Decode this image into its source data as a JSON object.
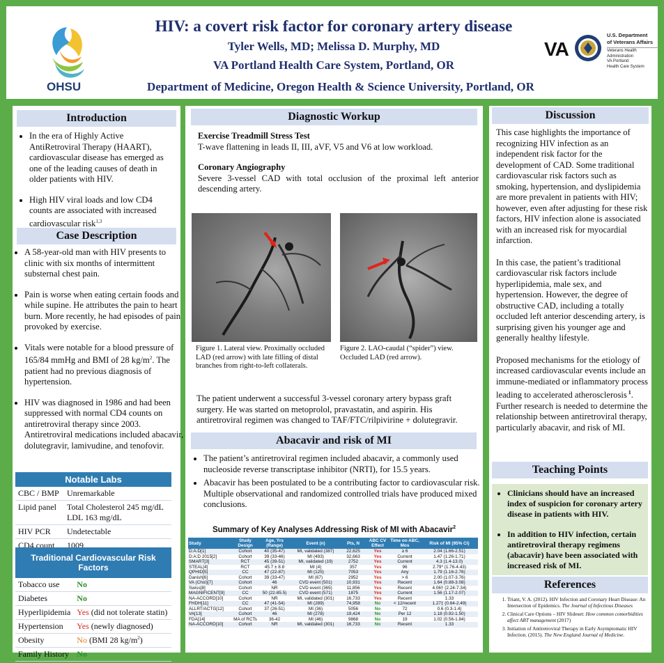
{
  "header": {
    "title": "HIV: a covert risk factor for coronary artery disease",
    "authors": "Tyler Wells, MD;  Melissa D. Murphy, MD",
    "affiliation": "VA Portland Health Care System, Portland, OR",
    "department": "Department of Medicine, Oregon Health & Science University, Portland, OR",
    "ohsu_logo": "OHSU",
    "va_logo": "VA",
    "va_dept_line1": "U.S. Department",
    "va_dept_line2": "of Veterans Affairs",
    "va_admin_line1": "Veterans Health",
    "va_admin_line2": "Administration",
    "va_admin_line3": "VA Portland",
    "va_admin_line4": "Health Care System",
    "colors": {
      "background": "#5cad4a",
      "title": "#1f2f6e",
      "section_head": "#d4deef",
      "table_head": "#2f7cb2"
    }
  },
  "introduction": {
    "heading": "Introduction",
    "bullets": [
      "In the era of Highly Active AntiRetroviral Therapy (HAART), cardiovascular disease has emerged as one of the leading causes of death in older patients with HIV.",
      "High HIV viral loads and low CD4 counts are associated with increased cardiovascular risk"
    ],
    "bullet2_sup": "1,3"
  },
  "case": {
    "heading": "Case Description",
    "bullet1": "A 58-year-old man with HIV presents to clinic with six months of intermittent substernal chest pain.",
    "bullet2": "Pain is worse when eating certain foods and while supine. He attributes the pain to heart burn. More recently, he had episodes of pain provoked by exercise.",
    "bullet3_a": "Vitals were notable for a blood pressure of 165/84 mmHg and BMI of 28 kg/m",
    "bullet3_sup": "2",
    "bullet3_b": ". The patient had no previous diagnosis of hypertension.",
    "bullet4": "HIV was diagnosed in 1986 and had been suppressed with normal CD4 counts on antiretroviral therapy since 2003. Antiretroviral medications included abacavir, dolutegravir, lamivudine, and tenofovir."
  },
  "labs": {
    "heading": "Notable Labs",
    "rows": [
      {
        "name": "CBC / BMP",
        "value": "Unremarkable"
      },
      {
        "name": "Lipid panel",
        "value": "Total Cholesterol 245 mg/dL",
        "value2": "LDL 163 mg/dL"
      },
      {
        "name": "HIV PCR",
        "value": "Undetectable"
      },
      {
        "name": "CD4 count",
        "value": "1009"
      }
    ]
  },
  "risk": {
    "heading": "Traditional Cardiovascular Risk Factors",
    "rows": [
      {
        "name": "Tobacco use",
        "flag": "No",
        "note": ""
      },
      {
        "name": "Diabetes",
        "flag": "No",
        "note": ""
      },
      {
        "name": "Hyperlipidemia",
        "flag": "Yes",
        "note": " (did not tolerate statin)"
      },
      {
        "name": "Hypertension",
        "flag": "Yes",
        "note": " (newly diagnosed)"
      },
      {
        "name": "Obesity",
        "flag": "No",
        "note": " (BMI 28 kg/m",
        "note_sup": "2",
        "note_end": ")"
      },
      {
        "name": "Family History",
        "flag": "No",
        "note": ""
      }
    ]
  },
  "workup": {
    "heading": "Diagnostic Workup",
    "ett_title": "Exercise Treadmill Stress Test",
    "ett_text": "T-wave flattening in leads II, III, aVF, V5 and V6 at low workload.",
    "angio_title": "Coronary Angiography",
    "angio_text": "Severe 3-vessel CAD with total occlusion of the proximal left anterior descending artery.",
    "fig1_caption": "Figure 1. Lateral view. Proximally occluded LAD (red arrow) with late filling of distal branches from right-to-left collaterals.",
    "fig2_caption": "Figure 2. LAO-caudal (“spider”) view. Occluded LAD (red arrow).",
    "outcome": "The patient underwent a successful 3-vessel coronary artery bypass graft surgery. He was started on metoprolol, pravastatin, and aspirin. His antiretroviral regimen was changed to TAF/FTC/rilpivirine + dolutegravir."
  },
  "abacavir": {
    "heading": "Abacavir and risk of MI",
    "bullets": [
      "The patient’s antiretroviral regimen included abacavir, a commonly used nucleoside reverse transcriptase inhibitor (NRTI), for 15.5 years.",
      "Abacavir has been postulated to be a contributing factor to cardiovascular risk. Multiple observational and randomized controlled trials have produced mixed conclusions."
    ],
    "table_title": "Summary of Key Analyses Addressing Risk of MI with Abacavir",
    "table_title_sup": "2"
  },
  "table": {
    "headers": [
      "Study",
      "Study Design",
      "Age, Yrs (Range)",
      "Event (n)",
      "Pts, N",
      "ABC CV Effect",
      "Time on ABC, Mos",
      "Risk of MI (95% CI)"
    ],
    "rows": [
      [
        "D:A:D[1]",
        "Cohort",
        "40 (35-47)",
        "MI, validated (387)",
        "22,625",
        "Yes",
        "≥ 6",
        "2.04 (1.66-2.51)"
      ],
      [
        "D:A:D 2015[2]",
        "Cohort",
        "39 (33-46)",
        "MI (493)",
        "32,663",
        "Yes",
        "Current",
        "1.47 (1.26-1.71)"
      ],
      [
        "SMART[3]",
        "RCT",
        "45 (39-51)",
        "MI, validated (19)",
        "2752",
        "Yes",
        "Current",
        "4.3 (1.4-13.0)"
      ],
      [
        "STEAL[4]",
        "RCT",
        "45.7 ± 8.8",
        "MI (4)",
        "357",
        "Yes",
        "96",
        "2.79* (1.76-4.43)"
      ],
      [
        "QPHID[5]",
        "CC",
        "47 (22-87)",
        "MI (125)",
        "7053",
        "Yes",
        "Any",
        "1.79 (1.16-2.76)"
      ],
      [
        "Danish[6]",
        "Cohort",
        "39 (33-47)",
        "MI (67)",
        "2952",
        "Yes",
        "> 6",
        "2.00 (1.07-3.76)"
      ],
      [
        "VA (Choi)[7]",
        "Cohort",
        "46",
        "CVD event (501)",
        "10,931",
        "Yes",
        "Recent",
        "1.64 (0.88-3.08)"
      ],
      [
        "Swiss[8]",
        "Cohort",
        "NR",
        "CVD event (365)",
        "11,856",
        "Yes",
        "Recent",
        "4.06† (2.24-7.34)"
      ],
      [
        "MAGNIFICENT[9]",
        "CC",
        "50 (22-85.5)",
        "CVD event (571)",
        "1875",
        "Yes",
        "Current",
        "1.56 (1.17-2.07)"
      ],
      [
        "NA-ACCORD[10]",
        "Cohort",
        "NR",
        "MI, validated (301)",
        "16,733",
        "Yes",
        "Recent",
        "1.33"
      ],
      [
        "FHDH[11]",
        "CC",
        "47 (41-54)",
        "MI (289)",
        "74,958",
        "No",
        "< 12/recent",
        "1.27‡ (0.64-2.49)"
      ],
      [
        "ALLRT/ACTG[12]",
        "Cohort",
        "37 (26-51)",
        "MI (36)",
        "5056",
        "No",
        "72",
        "0.6 (0.3-1.4)"
      ],
      [
        "VA[13]",
        "Cohort",
        "46",
        "MI (278)",
        "19,424",
        "No",
        "Per 12",
        "1.18 (0.92-1.50)"
      ],
      [
        "FDA[14]",
        "MA of RCTs",
        "36-42",
        "MI (46)",
        "9868",
        "No",
        "19",
        "1.02 (0.56-1.84)"
      ],
      [
        "NA-ACCORD[10]",
        "Cohort",
        "NR",
        "MI, validated (301)",
        "16,733",
        "No",
        "Recent",
        "1.33"
      ]
    ]
  },
  "discussion": {
    "heading": "Discussion",
    "p1": "This case highlights the importance of recognizing HIV infection as an independent risk factor for the development of CAD. Some traditional cardiovascular risk factors such as smoking, hypertension, and dyslipidemia are more prevalent in patients with HIV; however, even after adjusting for these risk factors, HIV infection alone is associated with an increased risk for myocardial infarction.",
    "p2": "In this case, the patient’s traditional cardiovascular risk factors include hyperlipidemia, male sex, and hypertension. However, the degree of obstructive CAD, including a totally occluded left anterior descending artery, is surprising given his younger age and generally healthy lifestyle.",
    "p3_a": "Proposed mechanisms for the etiology of increased cardiovascular events include an immune-mediated or inflammatory process leading to accelerated atherosclerosis",
    "p3_sup": " 1",
    "p3_b": ". Further research is needed to determine the relationship between antiretroviral therapy, particularly abacavir, and risk of MI."
  },
  "teaching": {
    "heading": "Teaching Points",
    "bullets": [
      "Clinicians should have an increased index of suspicion for coronary artery disease in patients with HIV.",
      "In addition to HIV infection, certain antiretroviral therapy regimens (abacavir) have been associated with increased risk of MI."
    ]
  },
  "references": {
    "heading": "References",
    "r1": "Triant, V. A. (2012). HIV Infection and Coronary Heart Disease: An Intersection of Epidemics. ",
    "r1_i": "The Journal of Infectious Diseases",
    "r2": "Clinical Care Options – HIV Slideset: ",
    "r2_i": "How common comorbidities affect ART management",
    "r2_e": " (2017)",
    "r3": "Initiation of Antiretroviral Therapy in Early Asymptomatic HIV Infection. (2015). ",
    "r3_i": "The New England Journal of Medicine."
  }
}
